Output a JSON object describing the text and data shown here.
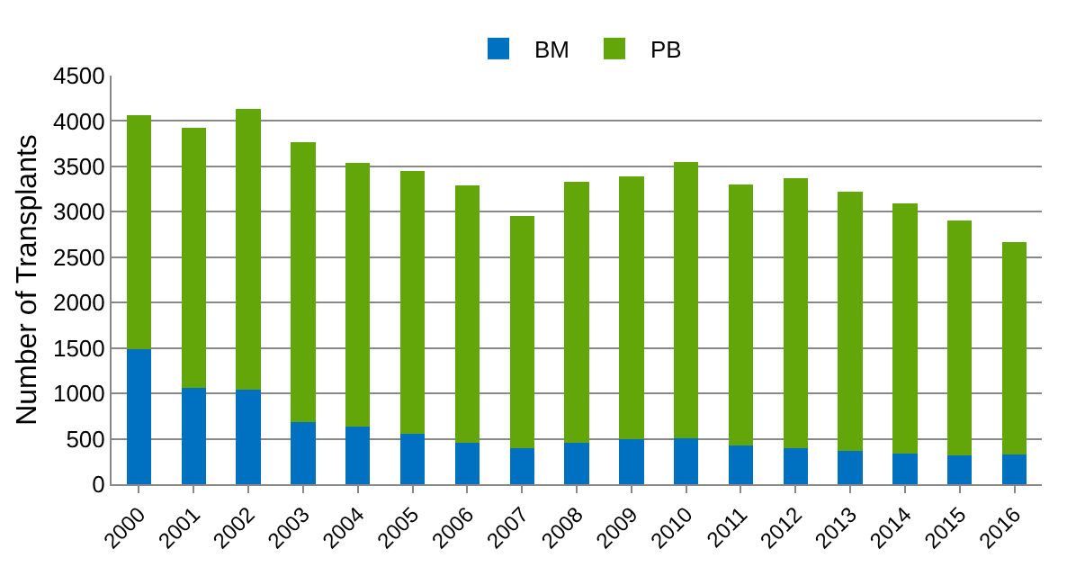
{
  "chart_data": {
    "type": "bar",
    "stacked": true,
    "ylabel": "Number of Transplants",
    "categories": [
      "2000",
      "2001",
      "2002",
      "2003",
      "2004",
      "2005",
      "2006",
      "2007",
      "2008",
      "2009",
      "2010",
      "2011",
      "2012",
      "2013",
      "2014",
      "2015",
      "2016"
    ],
    "series": [
      {
        "name": "BM",
        "color": "#0070c0",
        "values": [
          1490,
          1060,
          1040,
          680,
          630,
          560,
          460,
          400,
          460,
          500,
          510,
          430,
          400,
          370,
          340,
          320,
          330
        ]
      },
      {
        "name": "PB",
        "color": "#62a60a",
        "values": [
          2570,
          2870,
          3090,
          3090,
          2910,
          2890,
          2830,
          2550,
          2870,
          2890,
          3040,
          2870,
          2970,
          2850,
          2750,
          2580,
          2340
        ]
      }
    ],
    "ylim": [
      0,
      4500
    ],
    "yticks": [
      0,
      500,
      1000,
      1500,
      2000,
      2500,
      3000,
      3500,
      4000,
      4500
    ],
    "grid": "y",
    "legend": "top"
  }
}
